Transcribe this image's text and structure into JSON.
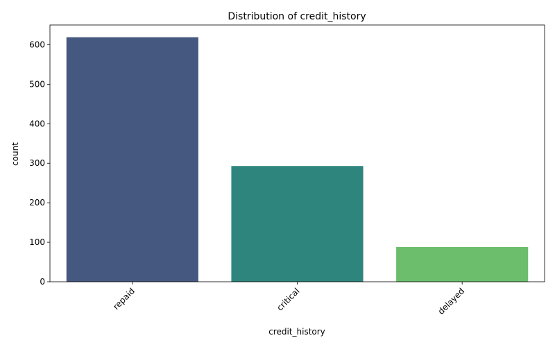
{
  "chart_data": {
    "type": "bar",
    "title": "Distribution of credit_history",
    "xlabel": "credit_history",
    "ylabel": "count",
    "categories": [
      "repaid",
      "critical",
      "delayed"
    ],
    "values": [
      619,
      293,
      88
    ],
    "colors": [
      "#45587f",
      "#2e857d",
      "#6cbd6c"
    ],
    "ylim": [
      0,
      650
    ],
    "yticks": [
      0,
      100,
      200,
      300,
      400,
      500,
      600
    ],
    "grid": false,
    "legend": "none"
  }
}
